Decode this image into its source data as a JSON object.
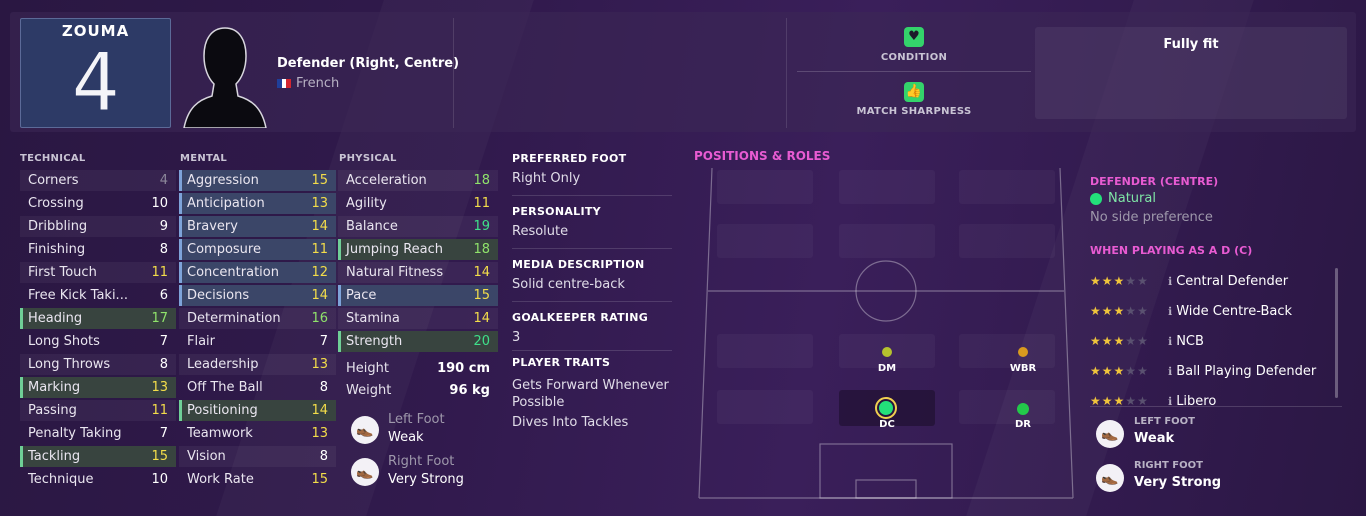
{
  "player": {
    "shirt_name": "ZOUMA",
    "shirt_number": "4",
    "position_title": "Defender (Right, Centre)",
    "nationality": "French",
    "flag_colors": [
      "#1f3f9a",
      "#ffffff",
      "#d22630"
    ]
  },
  "status": {
    "condition_label": "CONDITION",
    "sharpness_label": "MATCH SHARPNESS",
    "fitness": "Fully fit",
    "icon_color": "#34d36b"
  },
  "technical": {
    "title": "TECHNICAL",
    "items": [
      {
        "name": "Corners",
        "value": "4"
      },
      {
        "name": "Crossing",
        "value": "10"
      },
      {
        "name": "Dribbling",
        "value": "9"
      },
      {
        "name": "Finishing",
        "value": "8"
      },
      {
        "name": "First Touch",
        "value": "11"
      },
      {
        "name": "Free Kick Taki...",
        "value": "6"
      },
      {
        "name": "Heading",
        "value": "17"
      },
      {
        "name": "Long Shots",
        "value": "7"
      },
      {
        "name": "Long Throws",
        "value": "8"
      },
      {
        "name": "Marking",
        "value": "13"
      },
      {
        "name": "Passing",
        "value": "11"
      },
      {
        "name": "Penalty Taking",
        "value": "7"
      },
      {
        "name": "Tackling",
        "value": "15"
      },
      {
        "name": "Technique",
        "value": "10"
      }
    ]
  },
  "mental": {
    "title": "MENTAL",
    "items": [
      {
        "name": "Aggression",
        "value": "15"
      },
      {
        "name": "Anticipation",
        "value": "13"
      },
      {
        "name": "Bravery",
        "value": "14"
      },
      {
        "name": "Composure",
        "value": "11"
      },
      {
        "name": "Concentration",
        "value": "12"
      },
      {
        "name": "Decisions",
        "value": "14"
      },
      {
        "name": "Determination",
        "value": "16"
      },
      {
        "name": "Flair",
        "value": "7"
      },
      {
        "name": "Leadership",
        "value": "13"
      },
      {
        "name": "Off The Ball",
        "value": "8"
      },
      {
        "name": "Positioning",
        "value": "14"
      },
      {
        "name": "Teamwork",
        "value": "13"
      },
      {
        "name": "Vision",
        "value": "8"
      },
      {
        "name": "Work Rate",
        "value": "15"
      }
    ]
  },
  "physical": {
    "title": "PHYSICAL",
    "items": [
      {
        "name": "Acceleration",
        "value": "18"
      },
      {
        "name": "Agility",
        "value": "11"
      },
      {
        "name": "Balance",
        "value": "19"
      },
      {
        "name": "Jumping Reach",
        "value": "18"
      },
      {
        "name": "Natural Fitness",
        "value": "14"
      },
      {
        "name": "Pace",
        "value": "15"
      },
      {
        "name": "Stamina",
        "value": "14"
      },
      {
        "name": "Strength",
        "value": "20"
      }
    ],
    "height_label": "Height",
    "height_value": "190 cm",
    "weight_label": "Weight",
    "weight_value": "96 kg",
    "left_foot_label": "Left Foot",
    "left_foot_value": "Weak",
    "right_foot_label": "Right Foot",
    "right_foot_value": "Very Strong"
  },
  "info": {
    "preferred_foot_h": "PREFERRED FOOT",
    "preferred_foot": "Right Only",
    "personality_h": "PERSONALITY",
    "personality": "Resolute",
    "media_h": "MEDIA DESCRIPTION",
    "media": "Solid centre-back",
    "gk_h": "GOALKEEPER RATING",
    "gk": "3",
    "traits_h": "PLAYER TRAITS",
    "trait1": "Gets Forward Whenever Possible",
    "trait2": "Dives Into Tackles"
  },
  "positions": {
    "title": "POSITIONS & ROLES",
    "dm": "DM",
    "wbr": "WBR",
    "dc": "DC",
    "dr": "DR",
    "colors": {
      "dm": "#b5c22e",
      "wbr": "#d99a1e",
      "dc": "#23e07a",
      "dr": "#23c94a"
    }
  },
  "roles": {
    "pos_header": "DEFENDER (CENTRE)",
    "natural": "Natural",
    "side_pref": "No side preference",
    "playing_as": "WHEN PLAYING AS A D (C)",
    "items": [
      {
        "name": "Central Defender",
        "stars": 3
      },
      {
        "name": "Wide Centre-Back",
        "stars": 3
      },
      {
        "name": "NCB",
        "stars": 3
      },
      {
        "name": "Ball Playing Defender",
        "stars": 3
      },
      {
        "name": "Libero",
        "stars": 3
      }
    ],
    "left_foot_h": "LEFT FOOT",
    "left_foot": "Weak",
    "right_foot_h": "RIGHT FOOT",
    "right_foot": "Very Strong"
  }
}
